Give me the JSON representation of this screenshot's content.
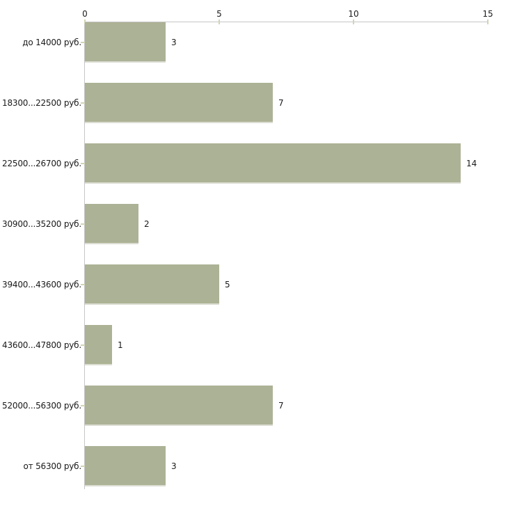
{
  "chart_data": {
    "type": "bar",
    "orientation": "horizontal",
    "categories": [
      "до 14000 руб.",
      "18300...22500 руб.",
      "22500...26700 руб.",
      "30900...35200 руб.",
      "39400...43600 руб.",
      "43600...47800 руб.",
      "52000...56300 руб.",
      "от 56300 руб."
    ],
    "values": [
      3,
      7,
      14,
      2,
      5,
      1,
      7,
      3
    ],
    "xticks": [
      0,
      5,
      10,
      15
    ],
    "xlim": [
      0,
      15
    ],
    "xlabel": "",
    "ylabel": "",
    "title": "",
    "grid": false,
    "legend": false,
    "axis_position": "top",
    "colors": {
      "bar": "#acb295",
      "bar_border": "#dbddd2",
      "axis": "#c6c6c6",
      "tick": "#d2d4b8",
      "text": "#1a1a1a",
      "background": "#ffffff"
    }
  }
}
